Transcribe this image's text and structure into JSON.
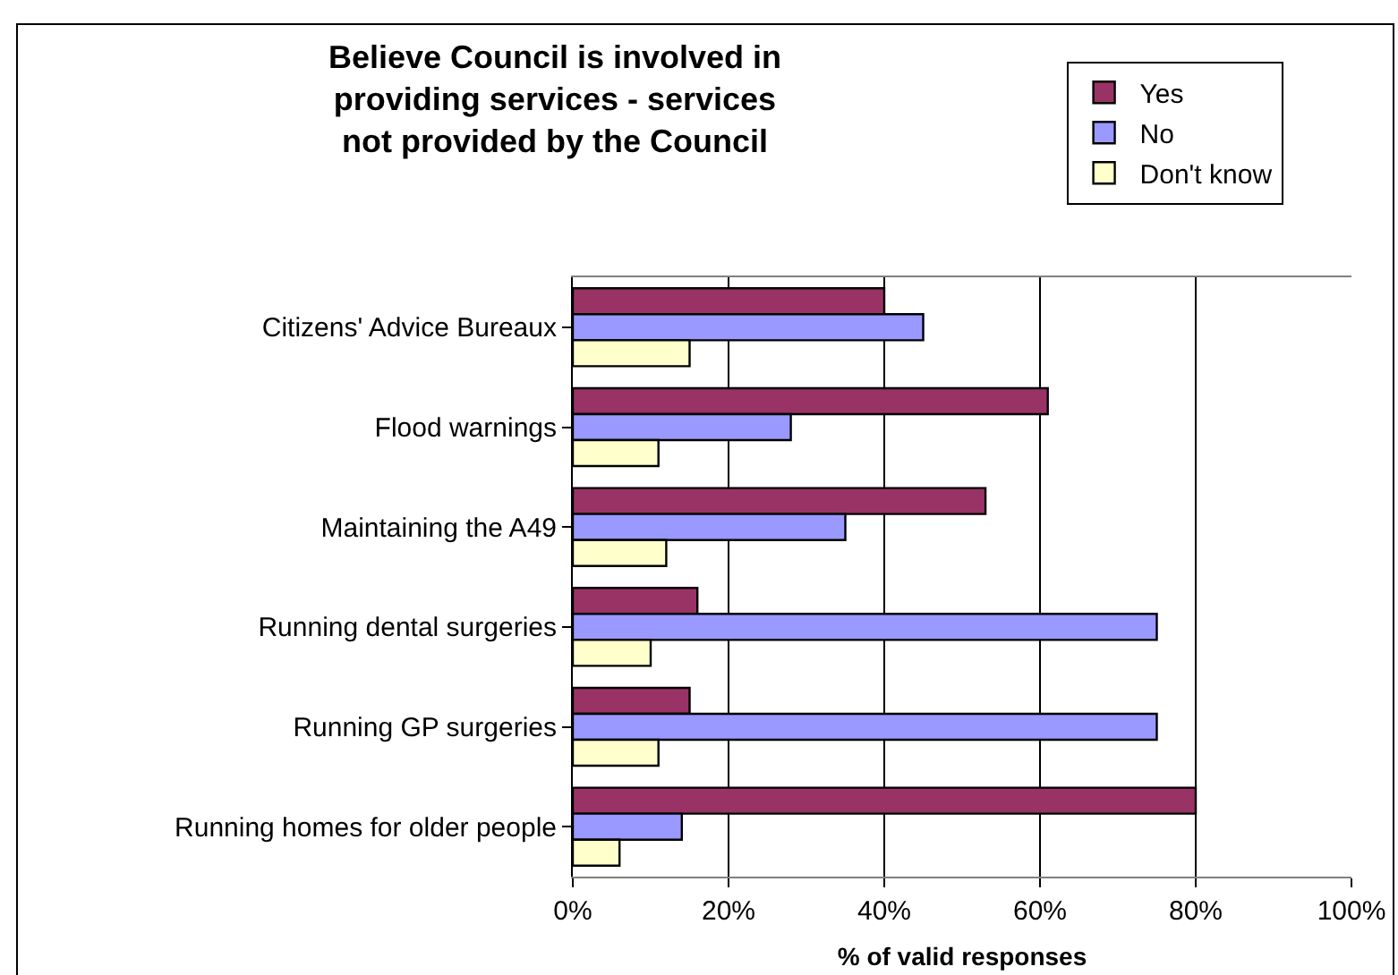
{
  "chart_data": {
    "type": "bar",
    "orientation": "horizontal",
    "title": "Believe Council is involved in providing services - services not provided by the Council",
    "xlabel": "% of valid responses",
    "categories": [
      "Citizens' Advice Bureaux",
      "Flood warnings",
      "Maintaining the A49",
      "Running dental surgeries",
      "Running GP surgeries",
      "Running homes for older people"
    ],
    "series": [
      {
        "name": "Yes",
        "color": "#993366",
        "values": [
          40,
          61,
          53,
          16,
          15,
          80
        ]
      },
      {
        "name": "No",
        "color": "#9999ff",
        "values": [
          45,
          28,
          35,
          75,
          75,
          14
        ]
      },
      {
        "name": "Don't know",
        "color": "#ffffcc",
        "values": [
          15,
          11,
          12,
          10,
          11,
          6
        ]
      }
    ],
    "xlim": [
      0,
      100
    ],
    "xticks": [
      {
        "value": 0,
        "label": "0%"
      },
      {
        "value": 20,
        "label": "20%"
      },
      {
        "value": 40,
        "label": "40%"
      },
      {
        "value": 60,
        "label": "60%"
      },
      {
        "value": 80,
        "label": "80%"
      },
      {
        "value": 100,
        "label": "100%"
      }
    ],
    "grid": "x",
    "legend": "top right"
  }
}
